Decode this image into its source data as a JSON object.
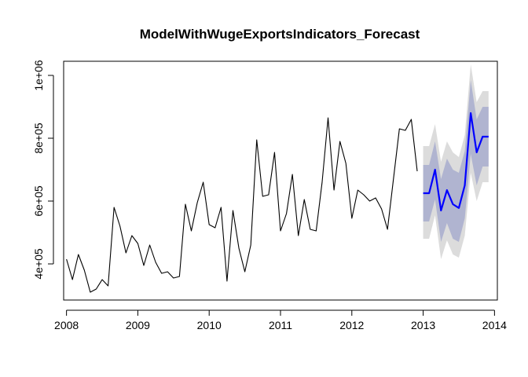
{
  "chart_data": {
    "type": "line",
    "title": "ModelWithWugeExportsIndicators_Forecast",
    "xlabel": "",
    "ylabel": "",
    "xlim": [
      2007.96,
      2014.04
    ],
    "ylim": [
      285000,
      1045000
    ],
    "x_ticks": [
      "2008",
      "2009",
      "2010",
      "2011",
      "2012",
      "2013",
      "2014"
    ],
    "y_ticks": [
      "4e+05",
      "6e+05",
      "8e+05",
      "1e+06"
    ],
    "grid": false,
    "legend": "none",
    "history": {
      "start": [
        2008,
        1
      ],
      "frequency": 12,
      "color": "#000000",
      "values": [
        415000,
        350000,
        430000,
        380000,
        310000,
        320000,
        350000,
        330000,
        580000,
        520000,
        435000,
        490000,
        465000,
        395000,
        460000,
        405000,
        370000,
        375000,
        355000,
        360000,
        590000,
        505000,
        595000,
        660000,
        525000,
        515000,
        580000,
        345000,
        570000,
        450000,
        375000,
        460000,
        795000,
        615000,
        620000,
        755000,
        505000,
        560000,
        685000,
        490000,
        605000,
        510000,
        505000,
        660000,
        865000,
        635000,
        790000,
        720000,
        545000,
        635000,
        620000,
        600000,
        610000,
        575000,
        510000,
        670000,
        830000,
        825000,
        860000,
        695000
      ]
    },
    "forecast": {
      "start": [
        2013,
        1
      ],
      "frequency": 12,
      "color": "#0000ff",
      "band_80_color": "#b0b4d0",
      "band_95_color": "#dcdcdc",
      "mean": [
        625000,
        625000,
        700000,
        570000,
        635000,
        590000,
        578000,
        650000,
        880000,
        755000,
        805000,
        805000
      ],
      "lo80": [
        535000,
        535000,
        605000,
        470000,
        530000,
        480000,
        470000,
        545000,
        750000,
        650000,
        710000,
        710000
      ],
      "hi80": [
        715000,
        715000,
        790000,
        670000,
        735000,
        700000,
        690000,
        760000,
        985000,
        860000,
        900000,
        900000
      ],
      "lo95": [
        480000,
        480000,
        555000,
        415000,
        475000,
        430000,
        420000,
        490000,
        690000,
        600000,
        660000,
        660000
      ],
      "hi95": [
        775000,
        775000,
        845000,
        725000,
        790000,
        755000,
        740000,
        810000,
        1035000,
        915000,
        950000,
        950000
      ]
    }
  }
}
